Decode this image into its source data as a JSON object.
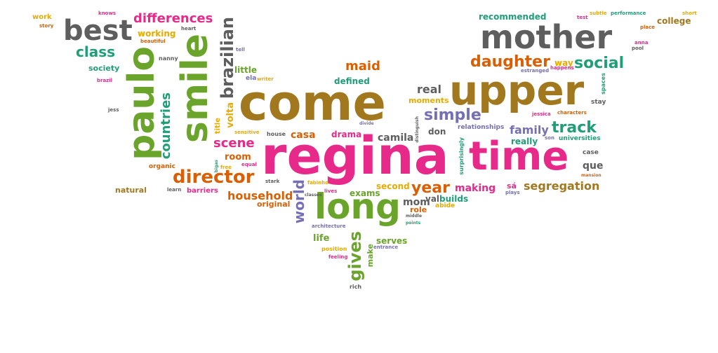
{
  "words": {
    "regina": "regina",
    "come": "come",
    "upper": "upper",
    "time": "time",
    "mother": "mother",
    "smile": "smile",
    "paulo": "paulo",
    "long": "long",
    "best": "best",
    "brazilian": "brazilian",
    "daughter": "daughter",
    "director": "director",
    "differences": "differences",
    "social": "social",
    "track": "track",
    "class": "class",
    "simple": "simple",
    "scene": "scene",
    "gives": "gives",
    "countries": "countries",
    "year": "year",
    "household": "household",
    "segregation": "segregation",
    "family": "family",
    "making": "making",
    "maid": "maid",
    "world": "world",
    "real": "real",
    "room": "room",
    "camila": "camila",
    "mom": "mom",
    "volta": "volta",
    "working": "working",
    "recommended": "recommended",
    "college": "college",
    "way": "way",
    "society": "society",
    "defined": "defined",
    "moments": "moments",
    "little": "little",
    "drama": "drama",
    "casa": "casa",
    "don": "don",
    "relationships": "relationships",
    "really": "really",
    "universities": "universities",
    "que": "que",
    "second": "second",
    "exams": "exams",
    "builds": "builds",
    "val": "val",
    "abide": "abide",
    "role": "role",
    "life": "life",
    "serves": "serves",
    "make": "make",
    "natural": "natural",
    "barriers": "barriers",
    "original": "original",
    "organic": "organic",
    "work": "work",
    "story": "story",
    "knows": "knows",
    "beautiful": "beautiful",
    "heart": "heart",
    "nanny": "nanny",
    "brazil": "brazil",
    "tell": "tell",
    "ela": "ela",
    "writer": "writer",
    "jess": "jess",
    "title": "title",
    "sensitive": "sensitive",
    "equal": "equal",
    "free": "free",
    "house": "house",
    "stark": "stark",
    "fabinho": "fabinho",
    "lives": "lives",
    "divide": "divide",
    "learn": "learn",
    "test": "test",
    "subtle": "subtle",
    "performance": "performance",
    "short": "short",
    "place": "place",
    "anna": "anna",
    "pool": "pool",
    "estranged": "estranged",
    "happens": "happens",
    "spaces": "spaces",
    "stay": "stay",
    "jessica": "jessica",
    "characters": "characters",
    "son": "son",
    "case": "case",
    "mansion": "mansion",
    "sa": "sá",
    "plays": "plays",
    "surprisingly": "surprisingly",
    "distinguish": "distinguish",
    "middle": "middle",
    "points": "points",
    "architecture": "architecture",
    "classes": "classes",
    "position": "position",
    "feeling": "feeling",
    "entrance": "entrance",
    "rich": "rich",
    "bigas": "bigas"
  },
  "palette": {
    "pink": "#d35c9b",
    "brown": "#a2781f",
    "gray": "#5e5e5e",
    "green": "#6aa42b",
    "teal": "#1f9e77",
    "purple": "#7570b3",
    "yellow": "#e6ab02",
    "orange": "#d95f02",
    "magenta": "#e7298a"
  }
}
